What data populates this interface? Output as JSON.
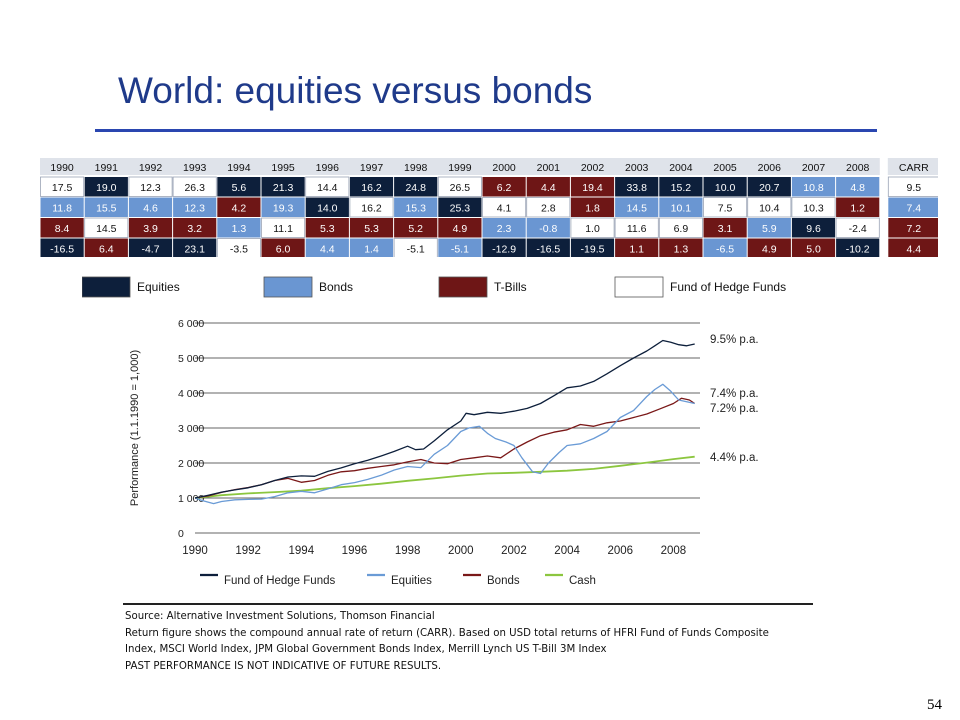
{
  "slide": {
    "title": "World: equities versus bonds",
    "page_number": "54"
  },
  "colors": {
    "equities": "#0d1f3b",
    "bonds": "#6a96d2",
    "tbills": "#6e1616",
    "fund_of_hedge_funds": "#ffffff",
    "title": "#1f3a8a",
    "line_fohf": "#0d1f3b",
    "line_equities": "#6a9bd6",
    "line_bonds": "#7a1818",
    "line_cash": "#8cc63f"
  },
  "returns_table": {
    "headers": [
      "1990",
      "1991",
      "1992",
      "1993",
      "1994",
      "1995",
      "1996",
      "1997",
      "1998",
      "1999",
      "2000",
      "2001",
      "2002",
      "2003",
      "2004",
      "2005",
      "2006",
      "2007",
      "2008",
      "CARR"
    ],
    "rows": [
      [
        {
          "v": "17.5",
          "c": "f"
        },
        {
          "v": "19.0",
          "c": "e"
        },
        {
          "v": "12.3",
          "c": "f"
        },
        {
          "v": "26.3",
          "c": "f"
        },
        {
          "v": "5.6",
          "c": "e"
        },
        {
          "v": "21.3",
          "c": "e"
        },
        {
          "v": "14.4",
          "c": "f"
        },
        {
          "v": "16.2",
          "c": "e"
        },
        {
          "v": "24.8",
          "c": "e"
        },
        {
          "v": "26.5",
          "c": "f"
        },
        {
          "v": "6.2",
          "c": "t"
        },
        {
          "v": "4.4",
          "c": "t"
        },
        {
          "v": "19.4",
          "c": "t"
        },
        {
          "v": "33.8",
          "c": "e"
        },
        {
          "v": "15.2",
          "c": "e"
        },
        {
          "v": "10.0",
          "c": "e"
        },
        {
          "v": "20.7",
          "c": "e"
        },
        {
          "v": "10.8",
          "c": "b"
        },
        {
          "v": "4.8",
          "c": "b"
        },
        {
          "v": "9.5",
          "c": "f"
        }
      ],
      [
        {
          "v": "11.8",
          "c": "b"
        },
        {
          "v": "15.5",
          "c": "b"
        },
        {
          "v": "4.6",
          "c": "b"
        },
        {
          "v": "12.3",
          "c": "b"
        },
        {
          "v": "4.2",
          "c": "t"
        },
        {
          "v": "19.3",
          "c": "b"
        },
        {
          "v": "14.0",
          "c": "e"
        },
        {
          "v": "16.2",
          "c": "f"
        },
        {
          "v": "15.3",
          "c": "b"
        },
        {
          "v": "25.3",
          "c": "e"
        },
        {
          "v": "4.1",
          "c": "f"
        },
        {
          "v": "2.8",
          "c": "f"
        },
        {
          "v": "1.8",
          "c": "t"
        },
        {
          "v": "14.5",
          "c": "b"
        },
        {
          "v": "10.1",
          "c": "b"
        },
        {
          "v": "7.5",
          "c": "f"
        },
        {
          "v": "10.4",
          "c": "f"
        },
        {
          "v": "10.3",
          "c": "f"
        },
        {
          "v": "1.2",
          "c": "t"
        },
        {
          "v": "7.4",
          "c": "b"
        }
      ],
      [
        {
          "v": "8.4",
          "c": "t"
        },
        {
          "v": "14.5",
          "c": "f"
        },
        {
          "v": "3.9",
          "c": "t"
        },
        {
          "v": "3.2",
          "c": "t"
        },
        {
          "v": "1.3",
          "c": "b"
        },
        {
          "v": "11.1",
          "c": "f"
        },
        {
          "v": "5.3",
          "c": "t"
        },
        {
          "v": "5.3",
          "c": "t"
        },
        {
          "v": "5.2",
          "c": "t"
        },
        {
          "v": "4.9",
          "c": "t"
        },
        {
          "v": "2.3",
          "c": "b"
        },
        {
          "v": "-0.8",
          "c": "b"
        },
        {
          "v": "1.0",
          "c": "f"
        },
        {
          "v": "11.6",
          "c": "f"
        },
        {
          "v": "6.9",
          "c": "f"
        },
        {
          "v": "3.1",
          "c": "t"
        },
        {
          "v": "5.9",
          "c": "b"
        },
        {
          "v": "9.6",
          "c": "e"
        },
        {
          "v": "-2.4",
          "c": "f"
        },
        {
          "v": "7.2",
          "c": "t"
        }
      ],
      [
        {
          "v": "-16.5",
          "c": "e"
        },
        {
          "v": "6.4",
          "c": "t"
        },
        {
          "v": "-4.7",
          "c": "e"
        },
        {
          "v": "23.1",
          "c": "e"
        },
        {
          "v": "-3.5",
          "c": "f"
        },
        {
          "v": "6.0",
          "c": "t"
        },
        {
          "v": "4.4",
          "c": "b"
        },
        {
          "v": "1.4",
          "c": "b"
        },
        {
          "v": "-5.1",
          "c": "f"
        },
        {
          "v": "-5.1",
          "c": "b"
        },
        {
          "v": "-12.9",
          "c": "e"
        },
        {
          "v": "-16.5",
          "c": "e"
        },
        {
          "v": "-19.5",
          "c": "e"
        },
        {
          "v": "1.1",
          "c": "t"
        },
        {
          "v": "1.3",
          "c": "t"
        },
        {
          "v": "-6.5",
          "c": "b"
        },
        {
          "v": "4.9",
          "c": "t"
        },
        {
          "v": "5.0",
          "c": "t"
        },
        {
          "v": "-10.2",
          "c": "e"
        },
        {
          "v": "4.4",
          "c": "t"
        }
      ]
    ],
    "legend": [
      {
        "key": "e",
        "label": "Equities"
      },
      {
        "key": "b",
        "label": "Bonds"
      },
      {
        "key": "t",
        "label": "T-Bills"
      },
      {
        "key": "f",
        "label": "Fund of Hedge Funds"
      }
    ]
  },
  "chart_data": {
    "type": "line",
    "title": "",
    "ylabel": "Performance (1.1.1990 = 1,000)",
    "xlabel": "",
    "xlim": [
      1990,
      2009
    ],
    "ylim": [
      0,
      6000
    ],
    "x_ticks": [
      "1990",
      "1992",
      "1994",
      "1996",
      "1998",
      "2000",
      "2002",
      "2004",
      "2006",
      "2008"
    ],
    "y_ticks": [
      "0",
      "1 000",
      "2 000",
      "3 000",
      "4 000",
      "5 000",
      "6 000"
    ],
    "grid": "horizontal",
    "legend_position": "bottom",
    "series": [
      {
        "name": "Fund of Hedge Funds",
        "color_key": "line_fohf",
        "end_label": "9.5% p.a.",
        "x": [
          1990,
          1990.5,
          1991,
          1991.5,
          1992,
          1992.5,
          1993,
          1993.5,
          1994,
          1994.5,
          1995,
          1995.5,
          1996,
          1996.5,
          1997,
          1997.5,
          1998,
          1998.3,
          1998.6,
          1999,
          1999.5,
          2000,
          2000.2,
          2000.5,
          2001,
          2001.5,
          2002,
          2002.5,
          2003,
          2003.5,
          2004,
          2004.5,
          2005,
          2005.5,
          2006,
          2006.5,
          2007,
          2007.3,
          2007.6,
          2007.9,
          2008.2,
          2008.5,
          2008.8
        ],
        "y": [
          1000,
          1080,
          1170,
          1230,
          1290,
          1380,
          1500,
          1600,
          1630,
          1620,
          1760,
          1860,
          1980,
          2080,
          2200,
          2330,
          2480,
          2380,
          2400,
          2630,
          2950,
          3200,
          3420,
          3380,
          3450,
          3420,
          3480,
          3560,
          3700,
          3920,
          4150,
          4200,
          4330,
          4550,
          4780,
          5000,
          5200,
          5350,
          5500,
          5450,
          5380,
          5350,
          5400
        ]
      },
      {
        "name": "Equities",
        "color_key": "line_equities",
        "end_label": "7.4% p.a.",
        "x": [
          1990,
          1990.3,
          1990.7,
          1991,
          1991.5,
          1992,
          1992.5,
          1993,
          1993.5,
          1994,
          1994.5,
          1995,
          1995.5,
          1996,
          1996.5,
          1997,
          1997.5,
          1998,
          1998.5,
          1999,
          1999.5,
          2000,
          2000.3,
          2000.7,
          2001,
          2001.3,
          2001.7,
          2002,
          2002.3,
          2002.7,
          2003,
          2003.3,
          2003.7,
          2004,
          2004.5,
          2005,
          2005.5,
          2006,
          2006.5,
          2007,
          2007.3,
          2007.6,
          2007.9,
          2008.2,
          2008.5,
          2008.8
        ],
        "y": [
          1000,
          920,
          840,
          900,
          950,
          960,
          970,
          1040,
          1150,
          1190,
          1150,
          1260,
          1380,
          1440,
          1530,
          1650,
          1800,
          1900,
          1870,
          2250,
          2500,
          2900,
          3000,
          3050,
          2850,
          2700,
          2600,
          2500,
          2150,
          1750,
          1700,
          2000,
          2300,
          2500,
          2550,
          2700,
          2900,
          3300,
          3500,
          3900,
          4100,
          4250,
          4050,
          3800,
          3750,
          3700
        ]
      },
      {
        "name": "Bonds",
        "color_key": "line_bonds",
        "end_label": "7.2% p.a.",
        "x": [
          1990,
          1990.5,
          1991,
          1991.5,
          1992,
          1992.5,
          1993,
          1993.5,
          1994,
          1994.5,
          1995,
          1995.5,
          1996,
          1996.5,
          1997,
          1997.5,
          1998,
          1998.5,
          1999,
          1999.5,
          2000,
          2000.5,
          2001,
          2001.5,
          2002,
          2002.5,
          2003,
          2003.5,
          2004,
          2004.5,
          2005,
          2005.5,
          2006,
          2006.5,
          2007,
          2007.5,
          2008,
          2008.3,
          2008.6,
          2008.8
        ],
        "y": [
          1000,
          1060,
          1160,
          1240,
          1300,
          1380,
          1500,
          1560,
          1450,
          1500,
          1650,
          1750,
          1780,
          1850,
          1900,
          1950,
          2030,
          2100,
          2000,
          1980,
          2100,
          2150,
          2200,
          2150,
          2400,
          2600,
          2780,
          2880,
          2950,
          3100,
          3050,
          3150,
          3200,
          3300,
          3400,
          3550,
          3700,
          3850,
          3800,
          3700
        ]
      },
      {
        "name": "Cash",
        "color_key": "line_cash",
        "end_label": "4.4% p.a.",
        "x": [
          1990,
          1991,
          1992,
          1993,
          1994,
          1995,
          1996,
          1997,
          1998,
          1999,
          2000,
          2001,
          2002,
          2003,
          2004,
          2005,
          2006,
          2007,
          2008,
          2008.8
        ],
        "y": [
          1000,
          1080,
          1130,
          1170,
          1210,
          1280,
          1340,
          1410,
          1490,
          1560,
          1640,
          1700,
          1720,
          1750,
          1780,
          1830,
          1920,
          2010,
          2110,
          2180
        ]
      }
    ]
  },
  "source": {
    "line1": "Source: Alternative Investment Solutions, Thomson Financial",
    "line2": "Return figure shows the compound annual rate of return (CARR). Based on USD total returns of HFRI Fund of Funds Composite",
    "line3": "Index, MSCI World Index, JPM Global Government Bonds Index, Merrill Lynch US T-Bill 3M Index",
    "line4": "PAST PERFORMANCE IS NOT INDICATIVE OF FUTURE RESULTS."
  }
}
